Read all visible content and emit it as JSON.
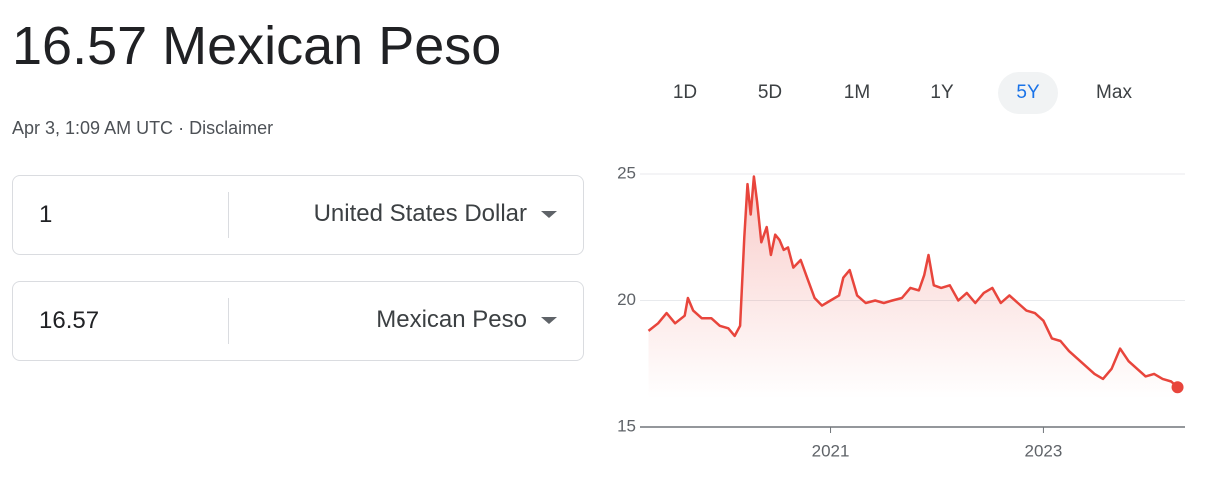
{
  "header": {
    "title": "16.57 Mexican Peso",
    "timestamp": "Apr 3, 1:09 AM UTC",
    "separator": "·",
    "disclaimer": "Disclaimer"
  },
  "converter": [
    {
      "amount": "1",
      "currency": "United States Dollar"
    },
    {
      "amount": "16.57",
      "currency": "Mexican Peso"
    }
  ],
  "ranges": [
    "1D",
    "5D",
    "1M",
    "1Y",
    "5Y",
    "Max"
  ],
  "selected_range": 4,
  "chart_data": {
    "type": "line",
    "color": "#e8453c",
    "grid": true,
    "x": [
      2019.29,
      2019.38,
      2019.46,
      2019.54,
      2019.63,
      2019.66,
      2019.71,
      2019.79,
      2019.88,
      2019.96,
      2020.04,
      2020.1,
      2020.15,
      2020.19,
      2020.22,
      2020.25,
      2020.28,
      2020.31,
      2020.35,
      2020.4,
      2020.44,
      2020.48,
      2020.52,
      2020.56,
      2020.6,
      2020.65,
      2020.72,
      2020.78,
      2020.85,
      2020.92,
      2021.0,
      2021.08,
      2021.12,
      2021.18,
      2021.25,
      2021.33,
      2021.42,
      2021.5,
      2021.58,
      2021.67,
      2021.75,
      2021.83,
      2021.88,
      2021.92,
      2021.97,
      2022.04,
      2022.12,
      2022.2,
      2022.28,
      2022.36,
      2022.44,
      2022.52,
      2022.6,
      2022.68,
      2022.76,
      2022.84,
      2022.92,
      2023.0,
      2023.08,
      2023.16,
      2023.24,
      2023.32,
      2023.4,
      2023.48,
      2023.56,
      2023.64,
      2023.72,
      2023.8,
      2023.88,
      2023.96,
      2024.04,
      2024.12,
      2024.2,
      2024.26
    ],
    "values": [
      18.8,
      19.1,
      19.5,
      19.1,
      19.4,
      20.1,
      19.6,
      19.3,
      19.3,
      19.0,
      18.9,
      18.6,
      19.0,
      22.5,
      24.6,
      23.4,
      24.9,
      23.9,
      22.3,
      22.9,
      21.8,
      22.6,
      22.4,
      22.0,
      22.1,
      21.3,
      21.6,
      20.9,
      20.1,
      19.8,
      20.0,
      20.2,
      20.9,
      21.2,
      20.2,
      19.9,
      20.0,
      19.9,
      20.0,
      20.1,
      20.5,
      20.4,
      21.0,
      21.8,
      20.6,
      20.5,
      20.6,
      20.0,
      20.3,
      19.9,
      20.3,
      20.5,
      19.9,
      20.2,
      19.9,
      19.6,
      19.5,
      19.2,
      18.5,
      18.4,
      18.0,
      17.7,
      17.4,
      17.1,
      16.9,
      17.3,
      18.1,
      17.6,
      17.3,
      17.0,
      17.1,
      16.9,
      16.8,
      16.57
    ],
    "xlim": [
      2019.21,
      2024.33
    ],
    "xticks": [
      2021,
      2023
    ],
    "ylim": [
      15,
      25
    ],
    "yticks": [
      15,
      20,
      25
    ]
  }
}
